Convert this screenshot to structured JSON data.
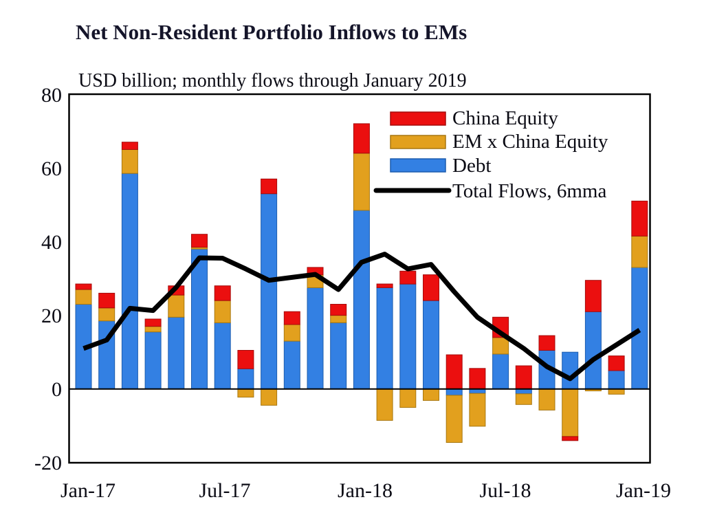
{
  "chart_data": {
    "type": "bar",
    "subtype": "stacked-bar-with-line-overlay",
    "title": "Net Non-Resident Portfolio Inflows to EMs",
    "subtitle": "USD billion; monthly flows through January 2019",
    "unit": "USD billion",
    "categories": [
      "Jan-17",
      "Feb-17",
      "Mar-17",
      "Apr-17",
      "May-17",
      "Jun-17",
      "Jul-17",
      "Aug-17",
      "Sep-17",
      "Oct-17",
      "Nov-17",
      "Dec-17",
      "Jan-18",
      "Feb-18",
      "Mar-18",
      "Apr-18",
      "May-18",
      "Jun-18",
      "Jul-18",
      "Aug-18",
      "Sep-18",
      "Oct-18",
      "Nov-18",
      "Dec-18",
      "Jan-19"
    ],
    "series": [
      {
        "name": "Debt",
        "color": "#3380E3",
        "values": [
          23,
          18.5,
          58.5,
          15.5,
          19.5,
          38,
          18,
          5.5,
          53,
          13,
          27.5,
          18,
          48.5,
          27.5,
          28.5,
          24,
          -1.7,
          -1.2,
          9.5,
          -1.3,
          10.5,
          10,
          21,
          5,
          33
        ]
      },
      {
        "name": "EM x China Equity",
        "color": "#E2A01E",
        "values": [
          4,
          3.5,
          6.5,
          1.5,
          6,
          0.5,
          6,
          -2.2,
          -4.4,
          4.5,
          3.5,
          2,
          15.5,
          -8.5,
          -5,
          -3.1,
          -12.8,
          -8.9,
          4.5,
          -2.9,
          -5.7,
          -12.9,
          -0.5,
          -1.4,
          8.5
        ]
      },
      {
        "name": "China Equity",
        "color": "#EB0F0F",
        "values": [
          1.5,
          4,
          2,
          2,
          2.5,
          3.5,
          4,
          5,
          4,
          3.5,
          2,
          3,
          8,
          1,
          3.5,
          7,
          9.3,
          5.6,
          5.5,
          6.3,
          4,
          -1.1,
          8.5,
          4,
          9.5
        ]
      }
    ],
    "line_series": {
      "name": "Total Flows, 6mma",
      "color": "#000000",
      "values": [
        11,
        13.3,
        21.9,
        21.3,
        27.6,
        35.6,
        35.5,
        32.6,
        29.5,
        30.3,
        31.1,
        27,
        34.4,
        36.6,
        32.6,
        33.8,
        26.4,
        19.5,
        15.2,
        11,
        6.1,
        2.8,
        8,
        12,
        16
      ]
    },
    "stack_order_bottom_to_top": [
      "Debt",
      "EM x China Equity",
      "China Equity"
    ],
    "ylim": [
      -20,
      80
    ],
    "y_ticks": [
      "80",
      "60",
      "40",
      "20",
      "0",
      "-20"
    ],
    "y_tick_values": [
      80,
      60,
      40,
      20,
      0,
      -20
    ],
    "x_tick_labels": [
      "Jan-17",
      "Jul-17",
      "Jan-18",
      "Jul-18",
      "Jan-19"
    ],
    "x_tick_month_indices": [
      0,
      6,
      12,
      18,
      24
    ],
    "grid": false,
    "legend_position": "top-right-inside",
    "legend": [
      {
        "label": "China Equity",
        "color": "#EB0F0F",
        "marker": "box"
      },
      {
        "label": "EM x China Equity",
        "color": "#E2A01E",
        "marker": "box"
      },
      {
        "label": "Debt",
        "color": "#3380E3",
        "marker": "box"
      },
      {
        "label": "Total Flows, 6mma",
        "color": "#000000",
        "marker": "line"
      }
    ],
    "axis_color": "#000000",
    "background_color": "#ffffff"
  }
}
